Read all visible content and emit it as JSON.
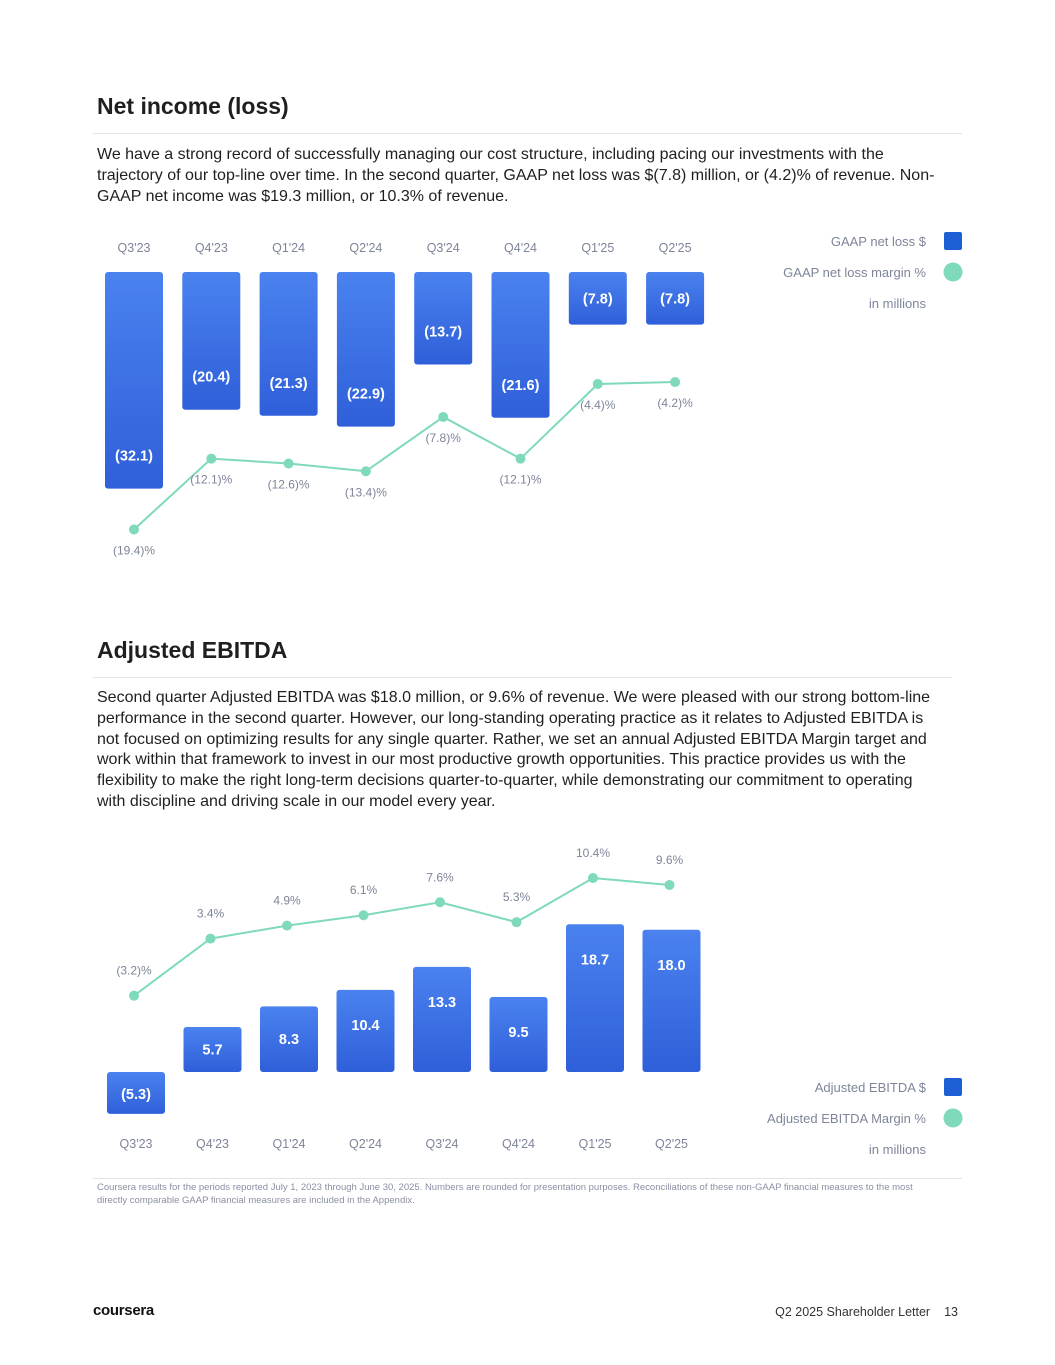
{
  "net_income": {
    "title": "Net income (loss)",
    "paragraph": "We have a strong record of successfully managing our cost structure, including pacing our investments with the trajectory of our top-line over time. In the second quarter, GAAP net loss was $(7.8) million, or (4.2)% of revenue. Non-GAAP net income was $19.3 million, or 10.3% of revenue."
  },
  "adjusted_ebitda": {
    "title": "Adjusted EBITDA",
    "paragraph": "Second quarter Adjusted EBITDA was $18.0 million, or 9.6% of revenue. We were pleased with our strong bottom-line performance in the second quarter. However, our long-standing operating practice as it relates to Adjusted EBITDA is not focused on optimizing results for any single quarter. Rather, we set an annual Adjusted EBITDA Margin target and work within that framework to invest in our most productive growth opportunities. This practice provides us with the flexibility to make the right long-term decisions quarter-to-quarter, while demonstrating our commitment to operating with discipline and driving scale in our model every year."
  },
  "colors": {
    "bar_top": "#4a82ef",
    "bar_bottom": "#2f5fd9",
    "line": "#7fd9bb",
    "label": "#7e8599",
    "legend_square": "#1f5fd6"
  },
  "chart_data": [
    {
      "type": "bar",
      "title": "Net income (loss)",
      "categories": [
        "Q3'23",
        "Q4'23",
        "Q1'24",
        "Q2'24",
        "Q3'24",
        "Q4'24",
        "Q1'25",
        "Q2'25"
      ],
      "series": [
        {
          "name": "GAAP net loss $",
          "type": "bar",
          "values": [
            -32.1,
            -20.4,
            -21.3,
            -22.9,
            -13.7,
            -21.6,
            -7.8,
            -7.8
          ],
          "labels": [
            "(32.1)",
            "(20.4)",
            "(21.3)",
            "(22.9)",
            "(13.7)",
            "(21.6)",
            "(7.8)",
            "(7.8)"
          ]
        },
        {
          "name": "GAAP net loss margin %",
          "type": "line",
          "values": [
            -19.4,
            -12.1,
            -12.6,
            -13.4,
            -7.8,
            -12.1,
            -4.4,
            -4.2
          ],
          "labels": [
            "(19.4)%",
            "(12.1)%",
            "(12.6)%",
            "(13.4)%",
            "(7.8)%",
            "(12.1)%",
            "(4.4)%",
            "(4.2)%"
          ]
        }
      ],
      "legend": [
        "GAAP net loss $",
        "GAAP net loss margin %"
      ],
      "unit_note": "in millions",
      "legend_position": "top-right"
    },
    {
      "type": "bar",
      "title": "Adjusted EBITDA",
      "categories": [
        "Q3'23",
        "Q4'23",
        "Q1'24",
        "Q2'24",
        "Q3'24",
        "Q4'24",
        "Q1'25",
        "Q2'25"
      ],
      "series": [
        {
          "name": "Adjusted EBITDA $",
          "type": "bar",
          "values": [
            -5.3,
            5.7,
            8.3,
            10.4,
            13.3,
            9.5,
            18.7,
            18.0
          ],
          "labels": [
            "(5.3)",
            "5.7",
            "8.3",
            "10.4",
            "13.3",
            "9.5",
            "18.7",
            "18.0"
          ]
        },
        {
          "name": "Adjusted EBITDA Margin %",
          "type": "line",
          "values": [
            -3.2,
            3.4,
            4.9,
            6.1,
            7.6,
            5.3,
            10.4,
            9.6
          ],
          "labels": [
            "(3.2)%",
            "3.4%",
            "4.9%",
            "6.1%",
            "7.6%",
            "5.3%",
            "10.4%",
            "9.6%"
          ]
        }
      ],
      "legend": [
        "Adjusted EBITDA $",
        "Adjusted EBITDA Margin %"
      ],
      "unit_note": "in millions",
      "legend_position": "bottom-right"
    }
  ],
  "footnote": "Coursera results for the periods reported July 1, 2023 through June 30, 2025. Numbers are rounded for presentation purposes. Reconciliations of these non-GAAP financial measures to the most directly comparable GAAP financial measures are included in the Appendix.",
  "footer": {
    "logo": "coursera",
    "doc_title": "Q2 2025 Shareholder Letter",
    "page_number": "13"
  }
}
